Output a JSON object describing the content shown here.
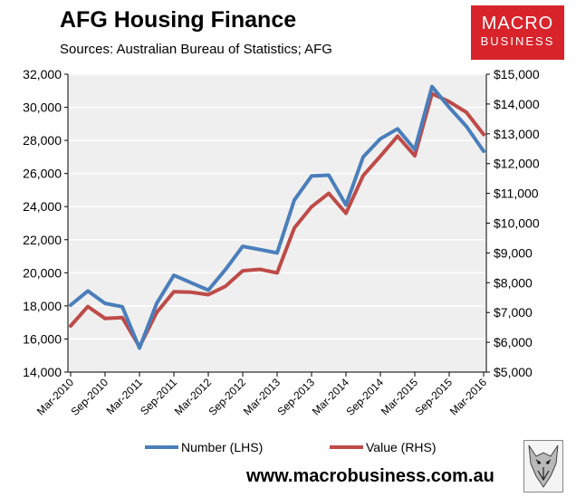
{
  "header": {
    "title": "AFG Housing Finance",
    "subtitle": "Sources: Australian Bureau of Statistics; AFG"
  },
  "brand": {
    "line1": "MACRO",
    "line2": "BUSINESS",
    "url": "www.macrobusiness.com.au",
    "color": "#d8232a",
    "mascot_icon": "wolf-icon"
  },
  "chart_data": {
    "type": "line",
    "categories": [
      "Mar-2010",
      "Jun-2010",
      "Sep-2010",
      "Dec-2010",
      "Mar-2011",
      "Jun-2011",
      "Sep-2011",
      "Dec-2011",
      "Mar-2012",
      "Jun-2012",
      "Sep-2012",
      "Dec-2012",
      "Mar-2013",
      "Jun-2013",
      "Sep-2013",
      "Dec-2013",
      "Mar-2014",
      "Jun-2014",
      "Sep-2014",
      "Dec-2014",
      "Mar-2015",
      "Jun-2015",
      "Sep-2015",
      "Dec-2015",
      "Mar-2016"
    ],
    "x_tick_labels": [
      "Mar-2010",
      "Sep-2010",
      "Mar-2011",
      "Sep-2011",
      "Mar-2012",
      "Sep-2012",
      "Mar-2013",
      "Sep-2013",
      "Mar-2014",
      "Sep-2014",
      "Mar-2015",
      "Sep-2015",
      "Mar-2016"
    ],
    "y_left_ticks": [
      "14,000",
      "16,000",
      "18,000",
      "20,000",
      "22,000",
      "24,000",
      "26,000",
      "28,000",
      "30,000",
      "32,000"
    ],
    "y_right_ticks": [
      "$5,000",
      "$6,000",
      "$7,000",
      "$8,000",
      "$9,000",
      "$10,000",
      "$11,000",
      "$12,000",
      "$13,000",
      "$14,000",
      "$15,000"
    ],
    "ylim_left": [
      14000,
      32000
    ],
    "ylim_right": [
      5000,
      15000
    ],
    "grid": true,
    "legend_position": "bottom",
    "series": [
      {
        "name": "Number (LHS)",
        "axis": "left",
        "color": "#4a7ebb",
        "values": [
          18050,
          18900,
          18150,
          17950,
          15450,
          18150,
          19850,
          19400,
          18950,
          20200,
          21600,
          21400,
          21200,
          24400,
          25850,
          25900,
          24100,
          27000,
          28100,
          28700,
          27450,
          31250,
          30000,
          28850,
          27350
        ]
      },
      {
        "name": "Value (RHS)",
        "axis": "right",
        "color": "#be4b48",
        "values": [
          6550,
          7200,
          6800,
          6830,
          5850,
          7000,
          7700,
          7680,
          7600,
          7880,
          8400,
          8450,
          8330,
          9840,
          10550,
          11000,
          10330,
          11600,
          12250,
          12920,
          12260,
          14350,
          14080,
          13720,
          12980
        ]
      }
    ]
  }
}
